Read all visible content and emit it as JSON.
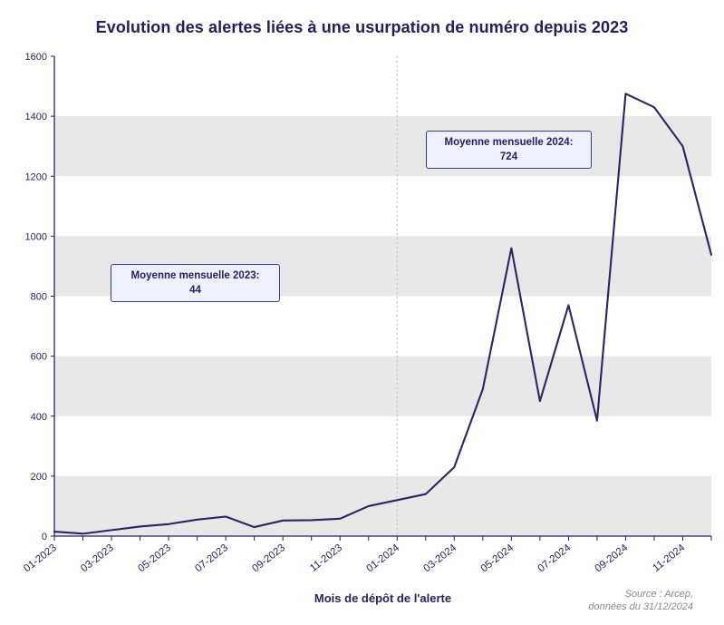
{
  "colors": {
    "navy": "#262262",
    "line": "#2b2660",
    "band": "#e8e8e8",
    "annotation_bg": "#eef0fb",
    "annotation_border": "#3a3d8f",
    "dotted": "#bbbbbb",
    "source": "#8a8a8a"
  },
  "chart_data": {
    "type": "line",
    "title": "Evolution des alertes liées à une usurpation de numéro depuis 2023",
    "xlabel": "Mois de dépôt de l'alerte",
    "ylabel": "",
    "x": [
      "01-2023",
      "02-2023",
      "03-2023",
      "04-2023",
      "05-2023",
      "06-2023",
      "07-2023",
      "08-2023",
      "09-2023",
      "10-2023",
      "11-2023",
      "12-2023",
      "01-2024",
      "02-2024",
      "03-2024",
      "04-2024",
      "05-2024",
      "06-2024",
      "07-2024",
      "08-2024",
      "09-2024",
      "10-2024",
      "11-2024",
      "12-2024"
    ],
    "values": [
      15,
      8,
      20,
      32,
      40,
      55,
      65,
      30,
      52,
      53,
      58,
      100,
      120,
      140,
      230,
      490,
      960,
      450,
      770,
      385,
      1475,
      1430,
      1300,
      938
    ],
    "x_tick_labels": [
      "01-2023",
      "03-2023",
      "05-2023",
      "07-2023",
      "09-2023",
      "11-2023",
      "01-2024",
      "03-2024",
      "05-2024",
      "07-2024",
      "09-2024",
      "11-2024"
    ],
    "x_ticks_shown_every": 2,
    "ylim": [
      0,
      1600
    ],
    "ytick_step": 200,
    "grid_bands": true,
    "legend": "none",
    "separator_x": "01-2024",
    "mean_2023": 44,
    "mean_2024": 724,
    "annotations": [
      {
        "line1": "Moyenne mensuelle 2023:",
        "value": "44"
      },
      {
        "line1": "Moyenne mensuelle 2024:",
        "value": "724"
      }
    ],
    "source": [
      "Source : Arcep,",
      "données du 31/12/2024"
    ]
  }
}
